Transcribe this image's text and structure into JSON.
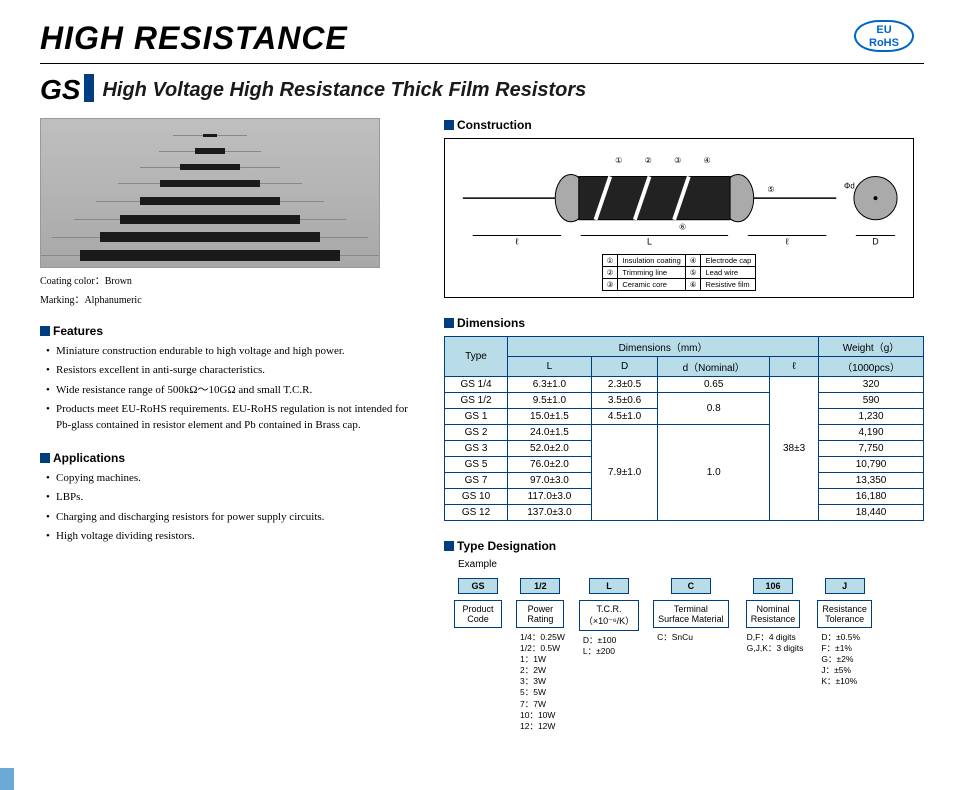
{
  "header": {
    "main_title": "HIGH RESISTANCE",
    "rohs_top": "EU",
    "rohs_bot": "RoHS",
    "series": "GS",
    "subtitle": "High Voltage High Resistance Thick Film Resistors"
  },
  "photo_caption": {
    "line1": "Coating color：Brown",
    "line2": "Marking：Alphanumeric"
  },
  "sections": {
    "features": "Features",
    "applications": "Applications",
    "construction": "Construction",
    "dimensions": "Dimensions",
    "designation": "Type Designation",
    "example": "Example"
  },
  "features": [
    "Miniature construction endurable to high voltage and high power.",
    "Resistors excellent in anti-surge characteristics.",
    "Wide resistance range of 500kΩ～10GΩ and small T.C.R.",
    "Products meet EU-RoHS requirements. EU-RoHS regulation is not intended for Pb-glass contained in resistor element and Pb contained in Brass cap."
  ],
  "applications": [
    "Copying machines.",
    "LBPs.",
    "Charging and discharging resistors for power supply circuits.",
    "High voltage dividing resistors."
  ],
  "construction_legend": {
    "c1": "Insulation coating",
    "c2": "Trimming line",
    "c3": "Ceramic core",
    "c4": "Electrode cap",
    "c5": "Lead wire",
    "c6": "Resistive film",
    "lbl_L": "L",
    "lbl_l": "ℓ",
    "lbl_D": "D",
    "lbl_d": "Φd"
  },
  "dim_table": {
    "h_type": "Type",
    "h_dims": "Dimensions（mm）",
    "h_weight": "Weight（g）",
    "h_weight2": "（1000pcs）",
    "h_L": "L",
    "h_D": "D",
    "h_d": "d（Nominal）",
    "h_l": "ℓ",
    "rows": [
      {
        "t": "GS 1/4",
        "L": "6.3±1.0",
        "D": "2.3±0.5",
        "d": "0.65",
        "l": "",
        "w": "320"
      },
      {
        "t": "GS 1/2",
        "L": "9.5±1.0",
        "D": "3.5±0.6",
        "d": "",
        "l": "",
        "w": "590"
      },
      {
        "t": "GS 1",
        "L": "15.0±1.5",
        "D": "4.5±1.0",
        "d": "",
        "l": "",
        "w": "1,230"
      },
      {
        "t": "GS 2",
        "L": "24.0±1.5",
        "D": "",
        "d": "",
        "l": "",
        "w": "4,190"
      },
      {
        "t": "GS 3",
        "L": "52.0±2.0",
        "D": "",
        "d": "",
        "l": "",
        "w": "7,750"
      },
      {
        "t": "GS 5",
        "L": "76.0±2.0",
        "D": "",
        "d": "",
        "l": "",
        "w": "10,790"
      },
      {
        "t": "GS 7",
        "L": "97.0±3.0",
        "D": "",
        "d": "",
        "l": "",
        "w": "13,350"
      },
      {
        "t": "GS 10",
        "L": "117.0±3.0",
        "D": "",
        "d": "",
        "l": "",
        "w": "16,180"
      },
      {
        "t": "GS 12",
        "L": "137.0±3.0",
        "D": "",
        "d": "",
        "l": "",
        "w": "18,440"
      }
    ],
    "merged_d08": "0.8",
    "merged_D79": "7.9±1.0",
    "merged_d10": "1.0",
    "merged_l": "38±3"
  },
  "designation": {
    "cols": [
      {
        "hd": "GS",
        "box": "Product\nCode",
        "items": []
      },
      {
        "hd": "1/2",
        "box": "Power\nRating",
        "items": [
          "1/4：0.25W",
          "1/2：0.5W",
          "1：1W",
          "2：2W",
          "3：3W",
          "5：5W",
          "7：7W",
          "10：10W",
          "12：12W"
        ]
      },
      {
        "hd": "L",
        "box": "T.C.R.\n（×10⁻⁶/K）",
        "items": [
          "D：±100",
          "L：±200"
        ]
      },
      {
        "hd": "C",
        "box": "Terminal\nSurface Material",
        "items": [
          "C：SnCu"
        ]
      },
      {
        "hd": "106",
        "box": "Nominal\nResistance",
        "items": [
          "D,F：4 digits",
          "G,J,K：3 digits"
        ]
      },
      {
        "hd": "J",
        "box": "Resistance\nTolerance",
        "items": [
          "D：±0.5%",
          "F：±1%",
          "G：±2%",
          "J：±5%",
          "K：±10%"
        ]
      }
    ]
  },
  "colors": {
    "accent": "#003f7f",
    "thbg": "#b8dce8"
  }
}
